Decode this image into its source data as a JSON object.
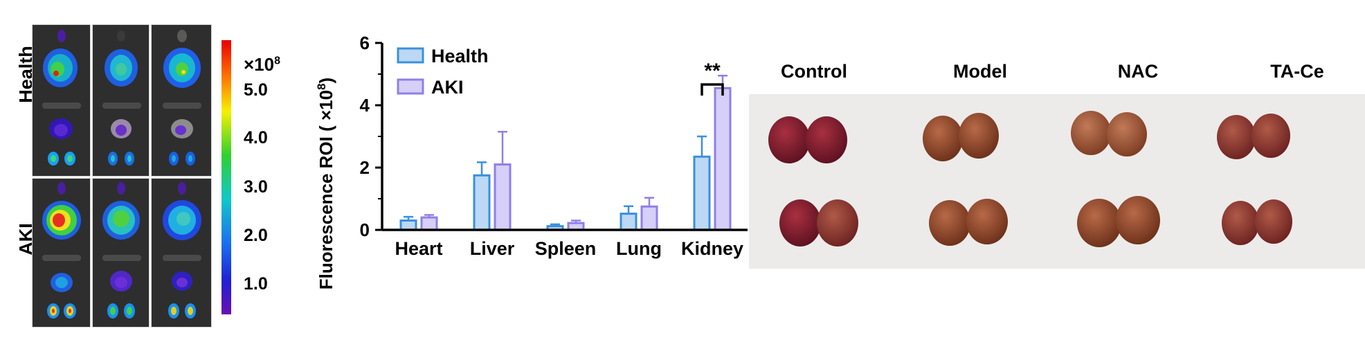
{
  "panel_a": {
    "row_labels": [
      "Health",
      "AKI"
    ],
    "colorbar": {
      "multiplier": "×10",
      "exponent": "8",
      "ticks": [
        "5.0",
        "4.0",
        "3.0",
        "2.0",
        "1.0"
      ]
    }
  },
  "chart_data": {
    "type": "bar",
    "categories": [
      "Heart",
      "Liver",
      "Spleen",
      "Lung",
      "Kidney"
    ],
    "series": [
      {
        "name": "Health",
        "values": [
          0.3,
          1.75,
          0.12,
          0.52,
          2.35
        ],
        "errors": [
          0.12,
          0.42,
          0.06,
          0.24,
          0.65
        ],
        "color": "#bcd8f5",
        "stroke": "#3a8fe0"
      },
      {
        "name": "AKI",
        "values": [
          0.4,
          2.1,
          0.22,
          0.75,
          4.55
        ],
        "errors": [
          0.08,
          1.05,
          0.08,
          0.28,
          0.4
        ],
        "color": "#d6cff7",
        "stroke": "#8f7fe8"
      }
    ],
    "ylabel": "Fluorescence ROI ( ×10",
    "ylabel_exp": "8",
    "ylabel_close": ")",
    "ylim": [
      0,
      6
    ],
    "yticks": [
      "0",
      "2",
      "4",
      "6"
    ],
    "significance": "**"
  },
  "panel_c": {
    "labels": [
      "Control",
      "Model",
      "NAC",
      "TA-Ce"
    ]
  }
}
